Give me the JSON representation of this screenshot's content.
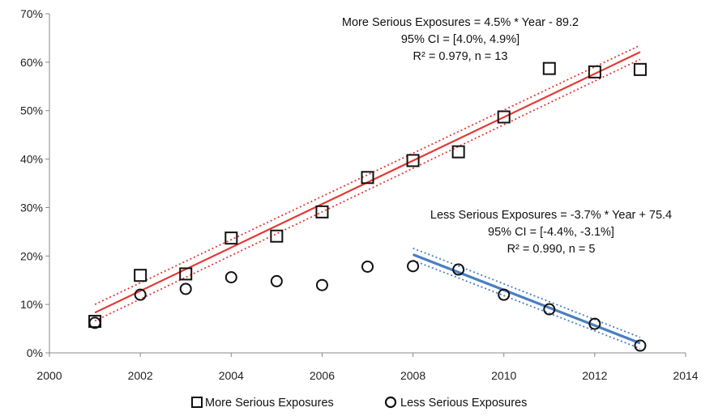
{
  "chart_data": {
    "type": "scatter",
    "xlim": [
      2000,
      2014
    ],
    "ylim": [
      0,
      70
    ],
    "x_ticks": [
      "2000",
      "2002",
      "2004",
      "2006",
      "2008",
      "2010",
      "2012",
      "2014"
    ],
    "y_ticks": [
      "0%",
      "10%",
      "20%",
      "30%",
      "40%",
      "50%",
      "60%",
      "70%"
    ],
    "grid": false,
    "legend_position": "bottom",
    "series": [
      {
        "name": "More Serious Exposures",
        "marker": "square",
        "x": [
          2001,
          2002,
          2003,
          2004,
          2005,
          2006,
          2007,
          2008,
          2009,
          2010,
          2011,
          2012,
          2013
        ],
        "y": [
          6.5,
          16.0,
          16.3,
          23.7,
          24.1,
          29.1,
          36.2,
          39.7,
          41.5,
          48.7,
          58.7,
          58.0,
          58.5
        ]
      },
      {
        "name": "Less Serious Exposures",
        "marker": "circle",
        "x": [
          2001,
          2002,
          2003,
          2004,
          2005,
          2006,
          2007,
          2008,
          2009,
          2010,
          2011,
          2012,
          2013
        ],
        "y": [
          6.2,
          12.0,
          13.2,
          15.6,
          14.8,
          14.0,
          17.8,
          17.9,
          17.2,
          12.0,
          9.0,
          6.0,
          1.5
        ]
      }
    ],
    "fits": [
      {
        "series": "More Serious Exposures",
        "color": "#e53935",
        "x_range": [
          2001,
          2013
        ],
        "line": [
          [
            2001,
            8.3
          ],
          [
            2013,
            62.1
          ]
        ],
        "ci_upper": [
          [
            2001,
            10.0
          ],
          [
            2013,
            63.5
          ]
        ],
        "ci_lower": [
          [
            2001,
            6.6
          ],
          [
            2013,
            60.6
          ]
        ],
        "equation_lines": [
          "More Serious Exposures = 4.5% * Year - 89.2",
          "95% CI = [4.0%, 4.9%]",
          "R² = 0.979, n = 13"
        ]
      },
      {
        "series": "Less Serious Exposures",
        "color": "#4a7fc1",
        "x_range": [
          2008,
          2013
        ],
        "line": [
          [
            2008,
            20.3
          ],
          [
            2013,
            2.0
          ]
        ],
        "ci_upper": [
          [
            2008,
            21.6
          ],
          [
            2013,
            3.2
          ]
        ],
        "ci_lower": [
          [
            2008,
            19.1
          ],
          [
            2013,
            0.9
          ]
        ],
        "equation_lines": [
          "Less Serious Exposures  = -3.7% * Year + 75.4",
          "95% CI = [-4.4%, -3.1%]",
          "R² = 0.990, n = 5"
        ]
      }
    ]
  }
}
